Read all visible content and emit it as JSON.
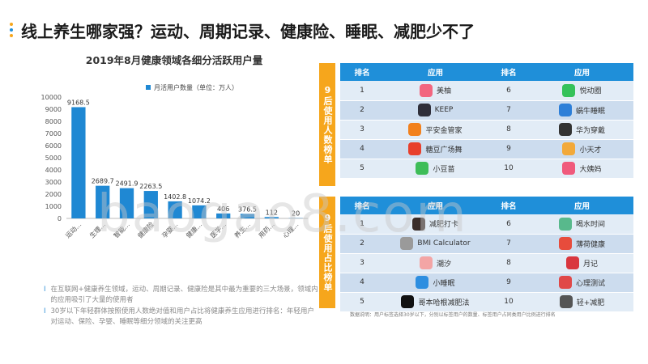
{
  "page": {
    "title": "线上养生哪家强？运动、周期记录、健康险、睡眠、减肥少不了",
    "dot_colors": [
      "#f6a61c",
      "#1f8fd9",
      "#f6a61c"
    ]
  },
  "chart_data": {
    "type": "bar",
    "title": "2019年8月健康领域各细分活跃用户量",
    "legend": "月活用户数量（单位：万人）",
    "legend_position": "top",
    "categories": [
      "运动...",
      "生理...",
      "智能...",
      "健康险",
      "孕婴...",
      "健康...",
      "医学...",
      "养生...",
      "用药...",
      "心理..."
    ],
    "values": [
      9168.5,
      2689.7,
      2491.9,
      2263.5,
      1402.8,
      1074.2,
      406,
      376.5,
      112,
      20
    ],
    "value_labels": [
      "9168.5",
      "2689.7",
      "2491.9",
      "2263.5",
      "1402.8",
      "1074.2",
      "406",
      "376.5",
      "112",
      "20"
    ],
    "yticks": [
      "10000",
      "9000",
      "8000",
      "7000",
      "6000",
      "5000",
      "4000",
      "3000",
      "2000",
      "1000",
      "0"
    ],
    "ylim": [
      0,
      10000
    ],
    "grid": false,
    "bar_color": "#1f88d3"
  },
  "notes": [
    "在互联网+健康养生领域，运动、周期记录、健康险是其中最为重要的三大场景，领域内的应用吸引了大量的使用者",
    "30岁以下年轻群体按照使用人数绝对值和用户占比将健康养生应用进行排名：年轻用户对运动、保险、孕婴、睡眠等细分领域的关注更高"
  ],
  "note_mark": "I",
  "panel_top": {
    "tab": "9后使用人数榜单",
    "headers": [
      "排名",
      "应用",
      "排名",
      "应用"
    ],
    "rows": [
      {
        "r1": "1",
        "a1": "美柚",
        "i1": "pink-flower-icon",
        "c1": "#f2667f",
        "r2": "6",
        "a2": "悦动圈",
        "i2": "green-check-icon",
        "c2": "#35c25a"
      },
      {
        "r1": "2",
        "a1": "KEEP",
        "i1": "keep-k-icon",
        "c1": "#2f2f3a",
        "r2": "7",
        "a2": "蜗牛睡眠",
        "i2": "snail-icon",
        "c2": "#2d7fd8"
      },
      {
        "r1": "3",
        "a1": "平安金管家",
        "i1": "orange-p-icon",
        "c1": "#f2811d",
        "r2": "8",
        "a2": "华为穿戴",
        "i2": "watch-icon",
        "c2": "#333333"
      },
      {
        "r1": "4",
        "a1": "糖豆广场舞",
        "i1": "red-face-icon",
        "c1": "#e8402c",
        "r2": "9",
        "a2": "小天才",
        "i2": "kid-icon",
        "c2": "#f2a93a"
      },
      {
        "r1": "5",
        "a1": "小豆苗",
        "i1": "sprout-icon",
        "c1": "#3ebd58",
        "r2": "10",
        "a2": "大姨妈",
        "i2": "pink-girl-icon",
        "c2": "#f05a7c"
      }
    ]
  },
  "panel_bottom": {
    "tab": "9后使用占比榜单",
    "headers": [
      "排名",
      "应用",
      "排名",
      "应用"
    ],
    "rows": [
      {
        "r1": "1",
        "a1": "减肥打卡",
        "i1": "dark-figure-icon",
        "c1": "#3a2d2a",
        "r2": "6",
        "a2": "喝水时间",
        "i2": "water-cup-icon",
        "c2": "#58b98c"
      },
      {
        "r1": "2",
        "a1": "BMI Calculator",
        "i1": "bmi-icon",
        "c1": "#9a9a9a",
        "r2": "7",
        "a2": "薄荷健康",
        "i2": "rainbow-icon",
        "c2": "#e74c3c"
      },
      {
        "r1": "3",
        "a1": "潮汐",
        "i1": "tide-circle-icon",
        "c1": "#f3a5a5",
        "r2": "8",
        "a2": "月记",
        "i2": "calendar-28-icon",
        "c2": "#d9363e"
      },
      {
        "r1": "4",
        "a1": "小睡眠",
        "i1": "sleep-icon",
        "c1": "#2d8ee0",
        "r2": "9",
        "a2": "心理测试",
        "i2": "heart-brain-icon",
        "c2": "#e04848"
      },
      {
        "r1": "5",
        "a1": "哥本哈根减肥法",
        "i1": "book-icon",
        "c1": "#111111",
        "r2": "10",
        "a2": "轻+减肥",
        "i2": "qing-icon",
        "c2": "#555555"
      }
    ]
  },
  "footnote": "数据说明：用户标签选择30岁以下，分别以标签用户的数量、标签用户占同类用户比例进行排名",
  "watermark": "baogao8.com"
}
